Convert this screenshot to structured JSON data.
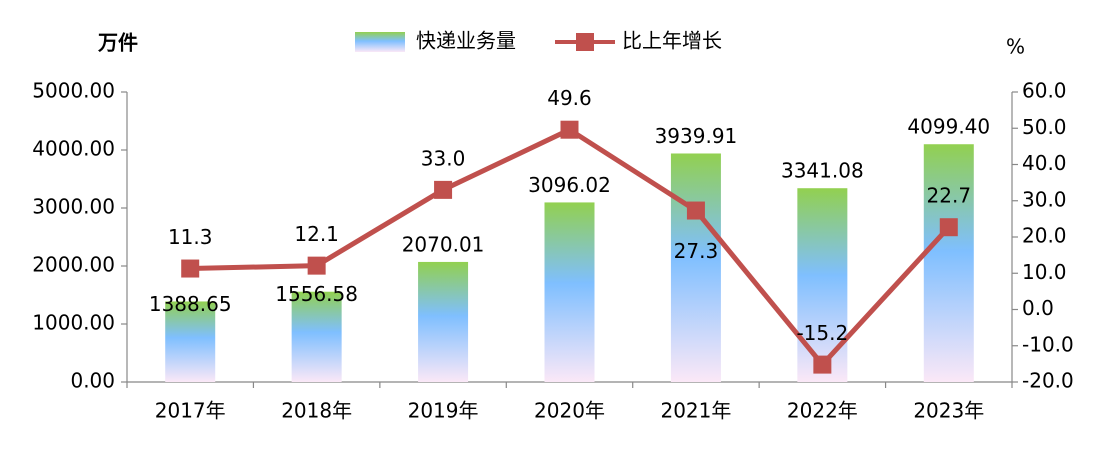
{
  "chart_data": {
    "type": "bar-line",
    "y_label": "万件",
    "y2_label": "%",
    "categories": [
      "2017年",
      "2018年",
      "2019年",
      "2020年",
      "2021年",
      "2022年",
      "2023年"
    ],
    "series": [
      {
        "name": "快递业务量",
        "type": "bar",
        "color": "#92d050",
        "values": [
          1388.65,
          1556.58,
          2070.01,
          3096.02,
          3939.91,
          3341.08,
          4099.4
        ],
        "value_labels": [
          "1388.65",
          "1556.58",
          "2070.01",
          "3096.02",
          "3939.91",
          "3341.08",
          "4099.40"
        ]
      },
      {
        "name": "比上年增长",
        "type": "line",
        "axis": "y2",
        "color": "#c0504d",
        "values": [
          11.3,
          12.1,
          33.0,
          49.6,
          27.3,
          -15.2,
          22.7
        ],
        "value_labels": [
          "11.3",
          "12.1",
          "33.0",
          "49.6",
          "27.3",
          "-15.2",
          "22.7"
        ]
      }
    ],
    "ylim": [
      0,
      5000
    ],
    "yticks": [
      {
        "value": 0,
        "label": "0.00"
      },
      {
        "value": 1000,
        "label": "1000.00"
      },
      {
        "value": 2000,
        "label": "2000.00"
      },
      {
        "value": 3000,
        "label": "3000.00"
      },
      {
        "value": 4000,
        "label": "4000.00"
      },
      {
        "value": 5000,
        "label": "5000.00"
      }
    ],
    "y2lim": [
      -20,
      60
    ],
    "y2ticks": [
      {
        "value": -20,
        "label": "-20.0"
      },
      {
        "value": -10,
        "label": "-10.0"
      },
      {
        "value": 0,
        "label": "0.0"
      },
      {
        "value": 10,
        "label": "10.0"
      },
      {
        "value": 20,
        "label": "20.0"
      },
      {
        "value": 30,
        "label": "30.0"
      },
      {
        "value": 40,
        "label": "40.0"
      },
      {
        "value": 50,
        "label": "50.0"
      },
      {
        "value": 60,
        "label": "60.0"
      }
    ],
    "grid": false
  }
}
